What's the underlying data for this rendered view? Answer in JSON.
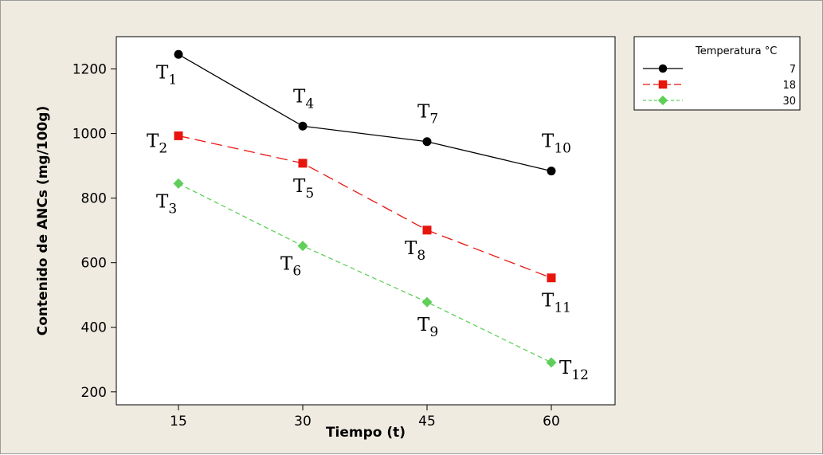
{
  "chart_data": {
    "type": "line",
    "title": "",
    "xlabel": "Tiempo (t)",
    "ylabel": "Contenido de ANCs (mg/100g)",
    "x": [
      15,
      30,
      45,
      60
    ],
    "ylim": [
      160,
      1300
    ],
    "yticks": [
      200,
      400,
      600,
      800,
      1000,
      1200
    ],
    "grid": false,
    "legend": {
      "title": "Temperatura °C",
      "placement": "outside-top-right"
    },
    "series": [
      {
        "name": "7",
        "values": [
          1245,
          1023,
          975,
          884
        ],
        "color": "#000000",
        "marker": "circle",
        "dash": "solid"
      },
      {
        "name": "18",
        "values": [
          993,
          908,
          701,
          553
        ],
        "color": "#e8140e",
        "marker": "square",
        "dash": "long-dash"
      },
      {
        "name": "30",
        "values": [
          845,
          652,
          478,
          291
        ],
        "color": "#5fcf5a",
        "marker": "diamond",
        "dash": "short-dash"
      }
    ],
    "annotations": [
      {
        "base": "T",
        "sub": "1",
        "series": 0,
        "point": 0,
        "position": "below-left"
      },
      {
        "base": "T",
        "sub": "4",
        "series": 0,
        "point": 1,
        "position": "above"
      },
      {
        "base": "T",
        "sub": "7",
        "series": 0,
        "point": 2,
        "position": "above"
      },
      {
        "base": "T",
        "sub": "10",
        "series": 0,
        "point": 3,
        "position": "above"
      },
      {
        "base": "T",
        "sub": "2",
        "series": 1,
        "point": 0,
        "position": "left"
      },
      {
        "base": "T",
        "sub": "5",
        "series": 1,
        "point": 1,
        "position": "below"
      },
      {
        "base": "T",
        "sub": "8",
        "series": 1,
        "point": 2,
        "position": "below-left"
      },
      {
        "base": "T",
        "sub": "11",
        "series": 1,
        "point": 3,
        "position": "below"
      },
      {
        "base": "T",
        "sub": "3",
        "series": 2,
        "point": 0,
        "position": "below-left"
      },
      {
        "base": "T",
        "sub": "6",
        "series": 2,
        "point": 1,
        "position": "below-left"
      },
      {
        "base": "T",
        "sub": "9",
        "series": 2,
        "point": 2,
        "position": "below"
      },
      {
        "base": "T",
        "sub": "12",
        "series": 2,
        "point": 3,
        "position": "right"
      }
    ]
  }
}
